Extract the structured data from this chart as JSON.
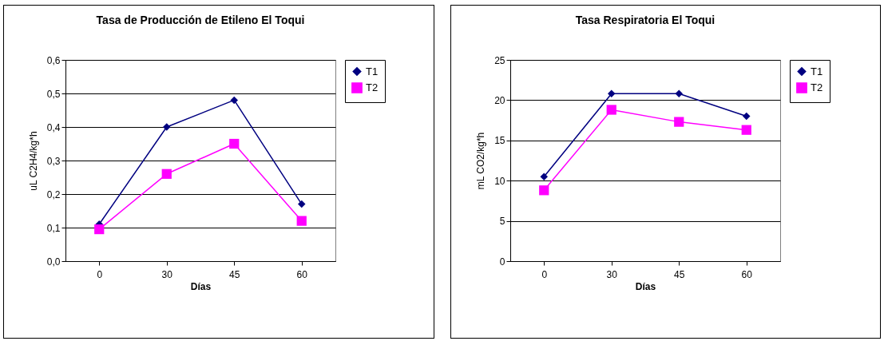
{
  "chart_data": [
    {
      "type": "line",
      "title": "Tasa de Producción de Etileno El Toqui",
      "xlabel": "Días",
      "ylabel": "uL C2H4/kg*h",
      "categories": [
        "0",
        "30",
        "45",
        "60"
      ],
      "series": [
        {
          "name": "T1",
          "color": "#000080",
          "marker": "diamond",
          "values": [
            0.11,
            0.4,
            0.48,
            0.17
          ]
        },
        {
          "name": "T2",
          "color": "#ff00ff",
          "marker": "square",
          "values": [
            0.095,
            0.26,
            0.35,
            0.12
          ]
        }
      ],
      "ylim": [
        0,
        0.6
      ],
      "yticks": [
        {
          "value": 0,
          "label": "0,0"
        },
        {
          "value": 0.1,
          "label": "0,1"
        },
        {
          "value": 0.2,
          "label": "0,2"
        },
        {
          "value": 0.3,
          "label": "0,3"
        },
        {
          "value": 0.4,
          "label": "0,4"
        },
        {
          "value": 0.5,
          "label": "0,5"
        },
        {
          "value": 0.6,
          "label": "0,6"
        }
      ],
      "grid": "y",
      "legend": "right"
    },
    {
      "type": "line",
      "title": "Tasa Respiratoria El Toqui",
      "xlabel": "Días",
      "ylabel": "mL CO2/kg*h",
      "categories": [
        "0",
        "30",
        "45",
        "60"
      ],
      "series": [
        {
          "name": "T1",
          "color": "#000080",
          "marker": "diamond",
          "values": [
            10.5,
            20.8,
            20.8,
            18.0
          ]
        },
        {
          "name": "T2",
          "color": "#ff00ff",
          "marker": "square",
          "values": [
            8.8,
            18.8,
            17.3,
            16.3
          ]
        }
      ],
      "ylim": [
        0,
        25
      ],
      "yticks": [
        0,
        5,
        10,
        15,
        20,
        25
      ],
      "grid": "y",
      "legend": "right"
    }
  ]
}
